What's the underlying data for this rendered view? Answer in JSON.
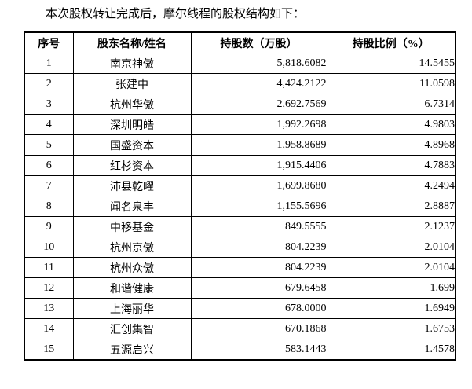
{
  "title": "本次股权转让完成后，摩尔线程的股权结构如下：",
  "colors": {
    "background": "#ffffff",
    "text": "#000000",
    "border": "#000000"
  },
  "table": {
    "headers": [
      "序号",
      "股东名称/姓名",
      "持股数（万股）",
      "持股比例（%）"
    ],
    "rows": [
      {
        "no": "1",
        "name": "南京神傲",
        "shares": "5,818.6082",
        "ratio": "14.5455"
      },
      {
        "no": "2",
        "name": "张建中",
        "shares": "4,424.2122",
        "ratio": "11.0598"
      },
      {
        "no": "3",
        "name": "杭州华傲",
        "shares": "2,692.7569",
        "ratio": "6.7314"
      },
      {
        "no": "4",
        "name": "深圳明皓",
        "shares": "1,992.2698",
        "ratio": "4.9803"
      },
      {
        "no": "5",
        "name": "国盛资本",
        "shares": "1,958.8689",
        "ratio": "4.8968"
      },
      {
        "no": "6",
        "name": "红杉资本",
        "shares": "1,915.4406",
        "ratio": "4.7883"
      },
      {
        "no": "7",
        "name": "沛县乾曜",
        "shares": "1,699.8680",
        "ratio": "4.2494"
      },
      {
        "no": "8",
        "name": "闻名泉丰",
        "shares": "1,155.5696",
        "ratio": "2.8887"
      },
      {
        "no": "9",
        "name": "中移基金",
        "shares": "849.5555",
        "ratio": "2.1237"
      },
      {
        "no": "10",
        "name": "杭州京傲",
        "shares": "804.2239",
        "ratio": "2.0104"
      },
      {
        "no": "11",
        "name": "杭州众傲",
        "shares": "804.2239",
        "ratio": "2.0104"
      },
      {
        "no": "12",
        "name": "和谐健康",
        "shares": "679.6458",
        "ratio": "1.699"
      },
      {
        "no": "13",
        "name": "上海丽华",
        "shares": "678.0000",
        "ratio": "1.6949"
      },
      {
        "no": "14",
        "name": "汇创集智",
        "shares": "670.1868",
        "ratio": "1.6753"
      },
      {
        "no": "15",
        "name": "五源启兴",
        "shares": "583.1443",
        "ratio": "1.4578"
      }
    ]
  }
}
